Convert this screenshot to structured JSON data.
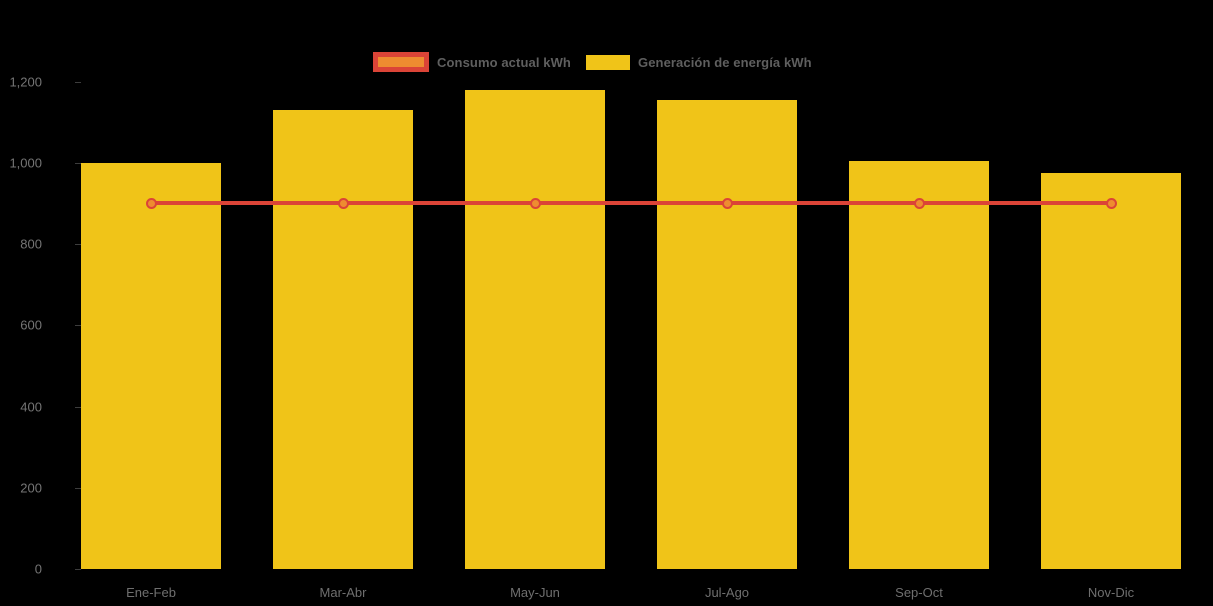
{
  "chart": {
    "background": "#000000",
    "legend": {
      "items": [
        {
          "label": "Consumo actual kWh",
          "type": "line-marker",
          "fill": "#EE8C30",
          "stroke": "#DB4437"
        },
        {
          "label": "Generación de energía kWh",
          "type": "bar",
          "fill": "#F0C418"
        }
      ],
      "text_color": "#5f5f5f",
      "position": "top-center"
    },
    "axis_text_color": "#757575"
  },
  "chart_data": {
    "type": "combo",
    "title": "",
    "xlabel": "",
    "ylabel": "",
    "categories": [
      "Ene-Feb",
      "Mar-Abr",
      "May-Jun",
      "Jul-Ago",
      "Sep-Oct",
      "Nov-Dic"
    ],
    "series": [
      {
        "name": "Generación de energía kWh",
        "type": "bar",
        "color": "#F0C418",
        "values": [
          1000,
          1130,
          1180,
          1155,
          1005,
          975
        ]
      },
      {
        "name": "Consumo actual kWh",
        "type": "line",
        "color": "#DB4437",
        "marker_fill": "#EE8C30",
        "marker_stroke": "#DB4437",
        "values": [
          900,
          900,
          900,
          900,
          900,
          900
        ]
      }
    ],
    "ylim": [
      0,
      1200
    ],
    "yticks": [
      0,
      200,
      400,
      600,
      800,
      1000,
      1200
    ],
    "ytick_labels": [
      "0",
      "200",
      "400",
      "600",
      "800",
      "1,000",
      "1,200"
    ],
    "grid": false,
    "legend_position": "top"
  }
}
